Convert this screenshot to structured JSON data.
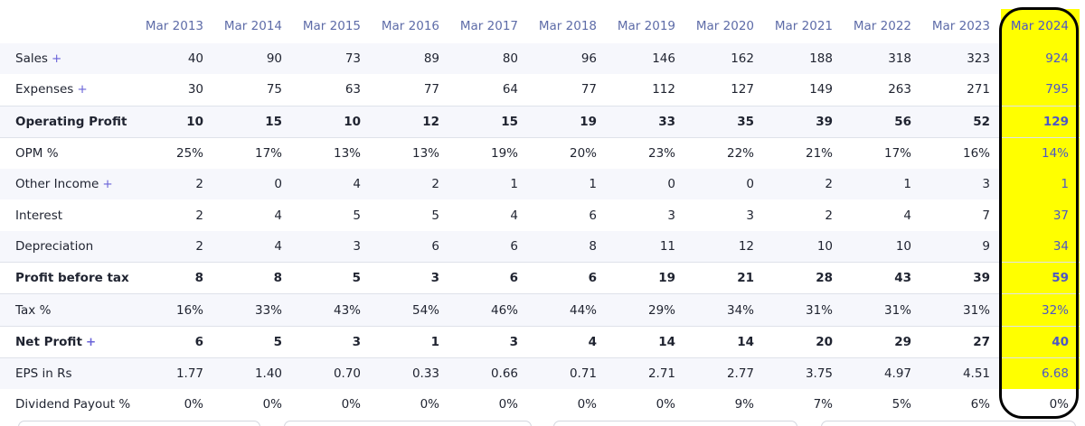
{
  "columns": [
    "Mar 2013",
    "Mar 2014",
    "Mar 2015",
    "Mar 2016",
    "Mar 2017",
    "Mar 2018",
    "Mar 2019",
    "Mar 2020",
    "Mar 2021",
    "Mar 2022",
    "Mar 2023",
    "Mar 2024"
  ],
  "plus_symbol": "+",
  "rows": [
    {
      "label": "Sales",
      "plus": true,
      "bold": false,
      "values": [
        "40",
        "90",
        "73",
        "89",
        "80",
        "96",
        "146",
        "162",
        "188",
        "318",
        "323",
        "924"
      ]
    },
    {
      "label": "Expenses",
      "plus": true,
      "bold": false,
      "values": [
        "30",
        "75",
        "63",
        "77",
        "64",
        "77",
        "112",
        "127",
        "149",
        "263",
        "271",
        "795"
      ]
    },
    {
      "label": "Operating Profit",
      "plus": false,
      "bold": true,
      "values": [
        "10",
        "15",
        "10",
        "12",
        "15",
        "19",
        "33",
        "35",
        "39",
        "56",
        "52",
        "129"
      ]
    },
    {
      "label": "OPM %",
      "plus": false,
      "bold": false,
      "values": [
        "25%",
        "17%",
        "13%",
        "13%",
        "19%",
        "20%",
        "23%",
        "22%",
        "21%",
        "17%",
        "16%",
        "14%"
      ]
    },
    {
      "label": "Other Income",
      "plus": true,
      "bold": false,
      "values": [
        "2",
        "0",
        "4",
        "2",
        "1",
        "1",
        "0",
        "0",
        "2",
        "1",
        "3",
        "1"
      ]
    },
    {
      "label": "Interest",
      "plus": false,
      "bold": false,
      "values": [
        "2",
        "4",
        "5",
        "5",
        "4",
        "6",
        "3",
        "3",
        "2",
        "4",
        "7",
        "37"
      ]
    },
    {
      "label": "Depreciation",
      "plus": false,
      "bold": false,
      "values": [
        "2",
        "4",
        "3",
        "6",
        "6",
        "8",
        "11",
        "12",
        "10",
        "10",
        "9",
        "34"
      ]
    },
    {
      "label": "Profit before tax",
      "plus": false,
      "bold": true,
      "values": [
        "8",
        "8",
        "5",
        "3",
        "6",
        "6",
        "19",
        "21",
        "28",
        "43",
        "39",
        "59"
      ]
    },
    {
      "label": "Tax %",
      "plus": false,
      "bold": false,
      "values": [
        "16%",
        "33%",
        "43%",
        "54%",
        "46%",
        "44%",
        "29%",
        "34%",
        "31%",
        "31%",
        "31%",
        "32%"
      ]
    },
    {
      "label": "Net Profit",
      "plus": true,
      "bold": true,
      "values": [
        "6",
        "5",
        "3",
        "1",
        "3",
        "4",
        "14",
        "14",
        "20",
        "29",
        "27",
        "40"
      ]
    },
    {
      "label": "EPS in Rs",
      "plus": false,
      "bold": false,
      "values": [
        "1.77",
        "1.40",
        "0.70",
        "0.33",
        "0.66",
        "0.71",
        "2.71",
        "2.77",
        "3.75",
        "4.97",
        "4.51",
        "6.68"
      ]
    },
    {
      "label": "Dividend Payout %",
      "plus": false,
      "bold": false,
      "values": [
        "0%",
        "0%",
        "0%",
        "0%",
        "0%",
        "0%",
        "0%",
        "9%",
        "7%",
        "5%",
        "6%",
        "0%"
      ]
    }
  ],
  "colors": {
    "header_text": "#5e6ca8",
    "plus": "#6a63d8",
    "highlight": "#ffff00",
    "highlight_text": "#4c56c6",
    "stripe": "#f6f7fc"
  }
}
